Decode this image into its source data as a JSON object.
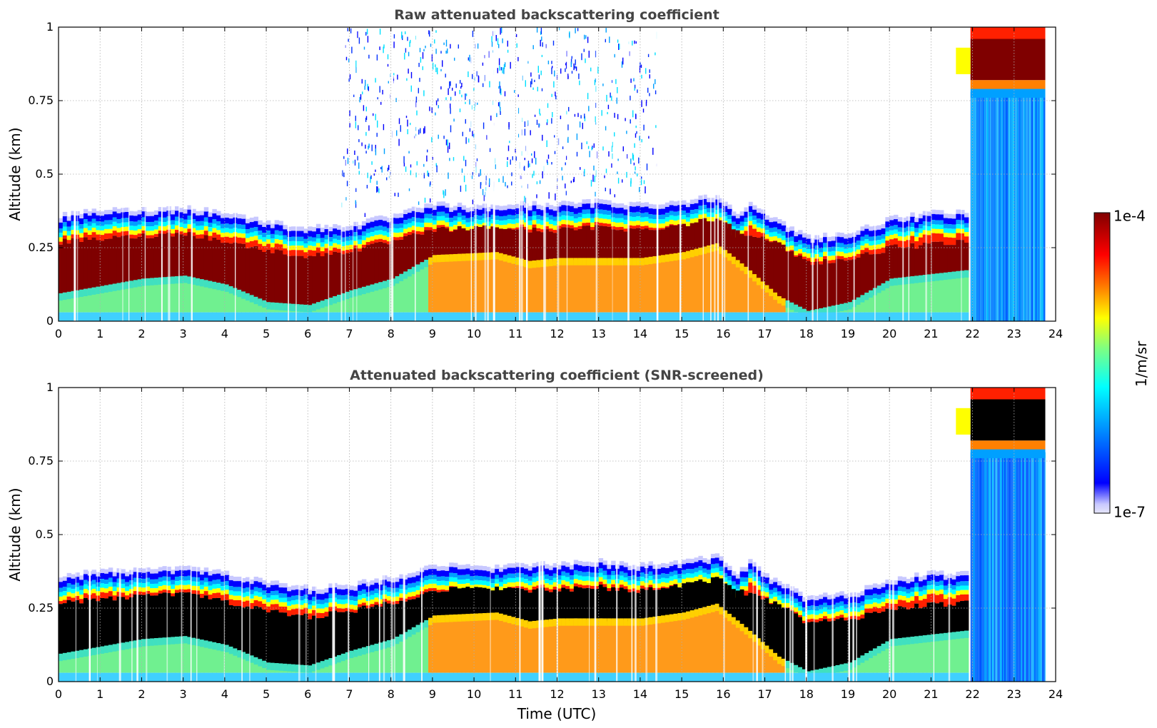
{
  "chart_data": [
    {
      "type": "heatmap",
      "title": "Raw attenuated backscattering coefficient",
      "xlabel": "",
      "ylabel": "Altitude (km)",
      "xlim": [
        0,
        24
      ],
      "ylim": [
        0,
        1
      ],
      "x_ticks": [
        "0",
        "1",
        "2",
        "3",
        "4",
        "5",
        "6",
        "7",
        "8",
        "9",
        "10",
        "11",
        "12",
        "13",
        "14",
        "15",
        "16",
        "17",
        "18",
        "19",
        "20",
        "21",
        "22",
        "23",
        "24"
      ],
      "y_ticks": [
        "0",
        "0.25",
        "0.5",
        "0.75",
        "1"
      ],
      "grid": true,
      "screened": false,
      "layer_top_km": [
        {
          "t": 0,
          "z": 0.33
        },
        {
          "t": 1,
          "z": 0.35
        },
        {
          "t": 2,
          "z": 0.35
        },
        {
          "t": 3,
          "z": 0.36
        },
        {
          "t": 4,
          "z": 0.34
        },
        {
          "t": 5,
          "z": 0.31
        },
        {
          "t": 6,
          "z": 0.29
        },
        {
          "t": 7,
          "z": 0.3
        },
        {
          "t": 8,
          "z": 0.33
        },
        {
          "t": 9,
          "z": 0.37
        },
        {
          "t": 10,
          "z": 0.36
        },
        {
          "t": 11,
          "z": 0.37
        },
        {
          "t": 12,
          "z": 0.37
        },
        {
          "t": 13,
          "z": 0.38
        },
        {
          "t": 14,
          "z": 0.37
        },
        {
          "t": 15,
          "z": 0.38
        },
        {
          "t": 15.8,
          "z": 0.4
        },
        {
          "t": 16.3,
          "z": 0.34
        },
        {
          "t": 16.6,
          "z": 0.38
        },
        {
          "t": 17,
          "z": 0.33
        },
        {
          "t": 18,
          "z": 0.26
        },
        {
          "t": 19,
          "z": 0.27
        },
        {
          "t": 20,
          "z": 0.32
        },
        {
          "t": 21,
          "z": 0.34
        },
        {
          "t": 21.9,
          "z": 0.34
        }
      ],
      "dense_core_km": [
        {
          "t": 0,
          "lo": 0.09,
          "hi": 0.27
        },
        {
          "t": 2,
          "lo": 0.14,
          "hi": 0.29
        },
        {
          "t": 3,
          "lo": 0.15,
          "hi": 0.3
        },
        {
          "t": 4,
          "lo": 0.12,
          "hi": 0.27
        },
        {
          "t": 5,
          "lo": 0.06,
          "hi": 0.24
        },
        {
          "t": 6,
          "lo": 0.05,
          "hi": 0.22
        },
        {
          "t": 7,
          "lo": 0.1,
          "hi": 0.24
        },
        {
          "t": 8,
          "lo": 0.14,
          "hi": 0.27
        },
        {
          "t": 9,
          "lo": 0.22,
          "hi": 0.31
        },
        {
          "t": 10.5,
          "lo": 0.23,
          "hi": 0.32
        },
        {
          "t": 11.3,
          "lo": 0.2,
          "hi": 0.31
        },
        {
          "t": 12,
          "lo": 0.21,
          "hi": 0.31
        },
        {
          "t": 13,
          "lo": 0.21,
          "hi": 0.32
        },
        {
          "t": 14,
          "lo": 0.21,
          "hi": 0.31
        },
        {
          "t": 15,
          "lo": 0.23,
          "hi": 0.33
        },
        {
          "t": 15.8,
          "lo": 0.26,
          "hi": 0.35
        },
        {
          "t": 16.5,
          "lo": 0.18,
          "hi": 0.3
        },
        {
          "t": 17.3,
          "lo": 0.08,
          "hi": 0.26
        },
        {
          "t": 18,
          "lo": 0.03,
          "hi": 0.2
        },
        {
          "t": 19,
          "lo": 0.06,
          "hi": 0.21
        },
        {
          "t": 20,
          "lo": 0.14,
          "hi": 0.25
        },
        {
          "t": 21.9,
          "lo": 0.17,
          "hi": 0.27
        }
      ],
      "high_cloud": {
        "t_start": 21.6,
        "t_end": 23.75,
        "base_km": 0.78,
        "top_km": 1.0
      }
    },
    {
      "type": "heatmap",
      "title": "Attenuated backscattering coefficient (SNR-screened)",
      "xlabel": "Time (UTC)",
      "ylabel": "Altitude (km)",
      "xlim": [
        0,
        24
      ],
      "ylim": [
        0,
        1
      ],
      "x_ticks": [
        "0",
        "1",
        "2",
        "3",
        "4",
        "5",
        "6",
        "7",
        "8",
        "9",
        "10",
        "11",
        "12",
        "13",
        "14",
        "15",
        "16",
        "17",
        "18",
        "19",
        "20",
        "21",
        "22",
        "23",
        "24"
      ],
      "y_ticks": [
        "0",
        "0.25",
        "0.5",
        "0.75",
        "1"
      ],
      "grid": true,
      "screened": true
    }
  ],
  "colorbar": {
    "label": "1/m/sr",
    "max_label": "1e-4",
    "min_label": "1e-7",
    "colormap": "jet"
  }
}
